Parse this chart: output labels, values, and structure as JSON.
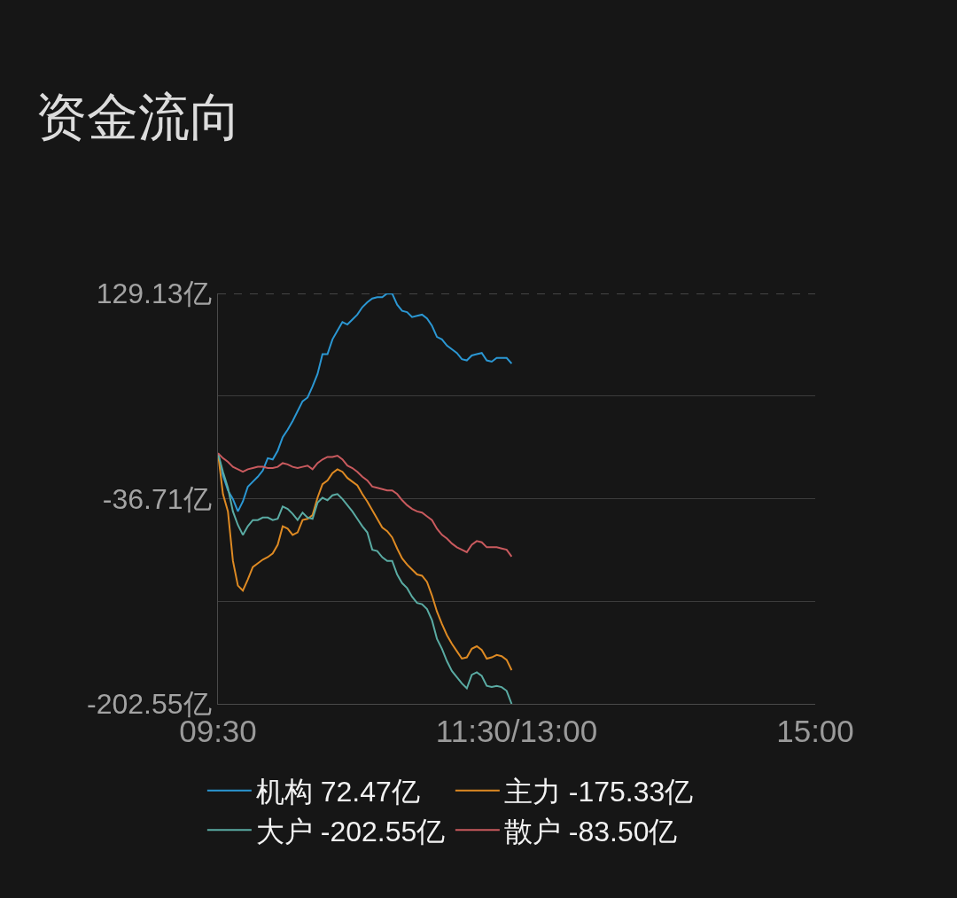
{
  "chart_data": {
    "type": "line",
    "title": "资金流向",
    "categories": [
      "09:30",
      null,
      null,
      null,
      null,
      null,
      null,
      null,
      null,
      null,
      null,
      null,
      null,
      null,
      null,
      null,
      null,
      null,
      null,
      null,
      null,
      null,
      null,
      null,
      null,
      null,
      null,
      null,
      null,
      null,
      null,
      null,
      null,
      null,
      null,
      null,
      null,
      null,
      null,
      null,
      null,
      null,
      null,
      null,
      null,
      null,
      null,
      null,
      null,
      null,
      null,
      null,
      null,
      null,
      null,
      null,
      null,
      null,
      null,
      null,
      "11:30/13:00",
      null,
      null,
      null,
      null,
      null,
      null,
      null,
      null,
      null,
      null,
      null,
      null,
      null,
      null,
      null,
      null,
      null,
      null,
      null,
      null,
      null,
      null,
      null,
      null,
      null,
      null,
      null,
      null,
      null,
      null,
      null,
      null,
      null,
      null,
      null,
      null,
      null,
      null,
      null,
      null,
      null,
      null,
      null,
      null,
      null,
      null,
      null,
      null,
      null,
      null,
      null,
      null,
      null,
      null,
      null,
      null,
      null,
      null,
      null,
      "15:00"
    ],
    "ylim": [
      -202.55,
      129.13
    ],
    "yticks": [
      {
        "value": 129.13,
        "label": "129.13亿"
      },
      {
        "value": 46.21,
        "label": null
      },
      {
        "value": -36.71,
        "label": "-36.71亿"
      },
      {
        "value": -119.63,
        "label": null
      },
      {
        "value": -202.55,
        "label": "-202.55亿"
      }
    ],
    "grid": "y",
    "legend": "bottom",
    "marker": "none",
    "line_style": "solid",
    "series": [
      {
        "name": "机构 72.47亿",
        "color": "#2b97d3",
        "values": [
          0,
          -18,
          -30,
          -37,
          -47,
          -39,
          -27,
          -23,
          -19,
          -14,
          -4,
          -5,
          2,
          13,
          19,
          26,
          34,
          42,
          45,
          54,
          64,
          80,
          80,
          92,
          99,
          106,
          104,
          108,
          112,
          118,
          122,
          125,
          126,
          126,
          129.13,
          129,
          120,
          115,
          114,
          110,
          111,
          112,
          109,
          103,
          94,
          92,
          87,
          84,
          81,
          76,
          75,
          79,
          80,
          81,
          75,
          74,
          77,
          77,
          77,
          72.47,
          null,
          null,
          null,
          null,
          null,
          null,
          null,
          null,
          null,
          null,
          null,
          null,
          null,
          null,
          null,
          null,
          null,
          null,
          null,
          null,
          null,
          null,
          null,
          null,
          null,
          null,
          null,
          null,
          null,
          null,
          null,
          null,
          null,
          null,
          null,
          null,
          null,
          null,
          null,
          null,
          null,
          null,
          null,
          null,
          null,
          null,
          null,
          null,
          null,
          null,
          null,
          null,
          null,
          null,
          null,
          null,
          null,
          null,
          null,
          null,
          null
        ]
      },
      {
        "name": "主力 -175.33亿",
        "color": "#de8a23",
        "values": [
          0,
          -33,
          -47,
          -87,
          -107,
          -111,
          -102,
          -92,
          -89,
          -86,
          -84,
          -81,
          -74,
          -59,
          -61,
          -66,
          -64,
          -54,
          -53,
          -50,
          -36,
          -25,
          -22,
          -16,
          -13,
          -15,
          -20,
          -23,
          -26,
          -33,
          -39,
          -46,
          -53,
          -60,
          -63,
          -68,
          -77,
          -85,
          -90,
          -94,
          -98,
          -99,
          -104,
          -115,
          -128,
          -138,
          -147,
          -154,
          -160,
          -166,
          -165,
          -158,
          -156,
          -159,
          -166,
          -165,
          -163,
          -164,
          -167,
          -175.33,
          null,
          null,
          null,
          null,
          null,
          null,
          null,
          null,
          null,
          null,
          null,
          null,
          null,
          null,
          null,
          null,
          null,
          null,
          null,
          null,
          null,
          null,
          null,
          null,
          null,
          null,
          null,
          null,
          null,
          null,
          null,
          null,
          null,
          null,
          null,
          null,
          null,
          null,
          null,
          null,
          null,
          null,
          null,
          null,
          null,
          null,
          null,
          null,
          null,
          null,
          null,
          null,
          null,
          null,
          null,
          null,
          null,
          null,
          null,
          null,
          null
        ]
      },
      {
        "name": "大户 -202.55亿",
        "color": "#5aaba3",
        "values": [
          0,
          -15,
          -28,
          -47,
          -58,
          -66,
          -59,
          -54,
          -54,
          -52,
          -52,
          -54,
          -53,
          -43,
          -45,
          -49,
          -54,
          -48,
          -52,
          -53,
          -40,
          -36,
          -38,
          -34,
          -33,
          -37,
          -42,
          -47,
          -53,
          -59,
          -64,
          -78,
          -79,
          -84,
          -87,
          -87,
          -98,
          -105,
          -109,
          -116,
          -121,
          -122,
          -126,
          -135,
          -150,
          -158,
          -168,
          -176,
          -181,
          -186,
          -190,
          -179,
          -177,
          -180,
          -188,
          -189,
          -188,
          -189,
          -192,
          -202.55,
          null,
          null,
          null,
          null,
          null,
          null,
          null,
          null,
          null,
          null,
          null,
          null,
          null,
          null,
          null,
          null,
          null,
          null,
          null,
          null,
          null,
          null,
          null,
          null,
          null,
          null,
          null,
          null,
          null,
          null,
          null,
          null,
          null,
          null,
          null,
          null,
          null,
          null,
          null,
          null,
          null,
          null,
          null,
          null,
          null,
          null,
          null,
          null,
          null,
          null,
          null,
          null,
          null,
          null,
          null,
          null,
          null,
          null,
          null,
          null,
          null
        ]
      },
      {
        "name": "散户 -83.50亿",
        "color": "#c95a5e",
        "values": [
          0,
          -4,
          -7,
          -11,
          -13,
          -15,
          -13,
          -12,
          -11,
          -11,
          -12,
          -12,
          -11,
          -8,
          -9,
          -11,
          -12,
          -11,
          -10,
          -13,
          -8,
          -5,
          -3,
          -3,
          -2,
          -5,
          -10,
          -12,
          -15,
          -19,
          -22,
          -27,
          -28,
          -29,
          -30,
          -30,
          -33,
          -38,
          -42,
          -45,
          -47,
          -48,
          -51,
          -54,
          -61,
          -66,
          -69,
          -73,
          -76,
          -78,
          -80,
          -74,
          -71,
          -72,
          -76,
          -76,
          -76,
          -77,
          -78,
          -83.5,
          null,
          null,
          null,
          null,
          null,
          null,
          null,
          null,
          null,
          null,
          null,
          null,
          null,
          null,
          null,
          null,
          null,
          null,
          null,
          null,
          null,
          null,
          null,
          null,
          null,
          null,
          null,
          null,
          null,
          null,
          null,
          null,
          null,
          null,
          null,
          null,
          null,
          null,
          null,
          null,
          null,
          null,
          null,
          null,
          null,
          null,
          null,
          null,
          null,
          null,
          null,
          null,
          null,
          null,
          null,
          null,
          null,
          null,
          null,
          null,
          null
        ]
      }
    ]
  }
}
